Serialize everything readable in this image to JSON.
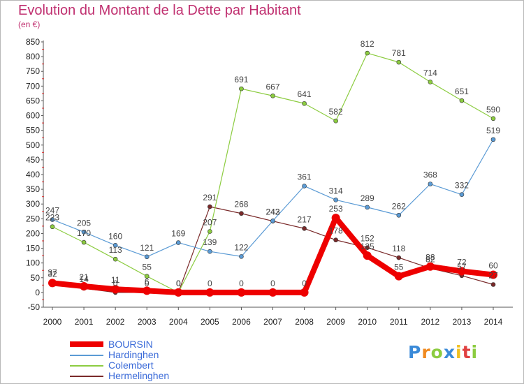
{
  "chart_data": {
    "type": "line",
    "title": "Evolution du Montant de la Dette par Habitant",
    "subtitle": "(en €)",
    "x": [
      "2000",
      "2001",
      "2002",
      "2003",
      "2004",
      "2005",
      "2006",
      "2007",
      "2008",
      "2009",
      "2010",
      "2011",
      "2012",
      "2013",
      "2014"
    ],
    "ylim": [
      -50,
      850
    ],
    "yticks": [
      -50,
      0,
      50,
      100,
      150,
      200,
      250,
      300,
      350,
      400,
      450,
      500,
      550,
      600,
      650,
      700,
      750,
      800,
      850
    ],
    "grid": false,
    "legend_position": "bottom-left",
    "series": [
      {
        "name": "Hermelinghen",
        "color": "#7a2a2a",
        "values": [
          37,
          14,
          0,
          0,
          0,
          291,
          268,
          242,
          217,
          178,
          152,
          118,
          82,
          57,
          27
        ],
        "labels": [
          "37",
          "14",
          "0",
          "0",
          "0",
          "291",
          "268",
          "242",
          "217",
          "178",
          "152",
          "118",
          "82",
          "57",
          "27"
        ]
      },
      {
        "name": "Colembert",
        "color": "#8ccc40",
        "values": [
          223,
          170,
          113,
          55,
          0,
          207,
          691,
          667,
          641,
          582,
          812,
          781,
          714,
          651,
          590
        ],
        "labels": [
          "223",
          "170",
          "113",
          "55",
          "0",
          "207",
          "691",
          "667",
          "641",
          "582",
          "812",
          "781",
          "714",
          "651",
          "590"
        ]
      },
      {
        "name": "Hardinghen",
        "color": "#5b9bd5",
        "values": [
          247,
          205,
          160,
          121,
          169,
          139,
          122,
          243,
          361,
          314,
          289,
          262,
          368,
          332,
          519
        ],
        "labels": [
          "247",
          "205",
          "160",
          "121",
          "169",
          "139",
          "122",
          "243",
          "361",
          "314",
          "289",
          "262",
          "368",
          "332",
          "519"
        ]
      },
      {
        "name": "BOURSIN",
        "color": "#ee0000",
        "values": [
          32,
          21,
          11,
          6,
          0,
          0,
          0,
          0,
          0,
          253,
          125,
          55,
          88,
          72,
          60
        ],
        "labels": [
          "32",
          "21",
          "11",
          "6",
          "0",
          "0",
          "0",
          "0",
          "0",
          "253",
          "125",
          "55",
          "88",
          "72",
          "60"
        ]
      }
    ]
  },
  "legend": [
    {
      "name": "BOURSIN",
      "color": "#ee0000"
    },
    {
      "name": "Hardinghen",
      "color": "#5b9bd5"
    },
    {
      "name": "Colembert",
      "color": "#8ccc40"
    },
    {
      "name": "Hermelinghen",
      "color": "#7a2a2a"
    }
  ],
  "logo": {
    "letters": [
      "P",
      "r",
      "o",
      "x",
      "i",
      "t",
      "i"
    ],
    "colors": [
      "#3a8ad8",
      "#f08a20",
      "#8ccc40",
      "#3a8ad8",
      "#f0c020",
      "#e04040",
      "#8ccc40"
    ]
  }
}
